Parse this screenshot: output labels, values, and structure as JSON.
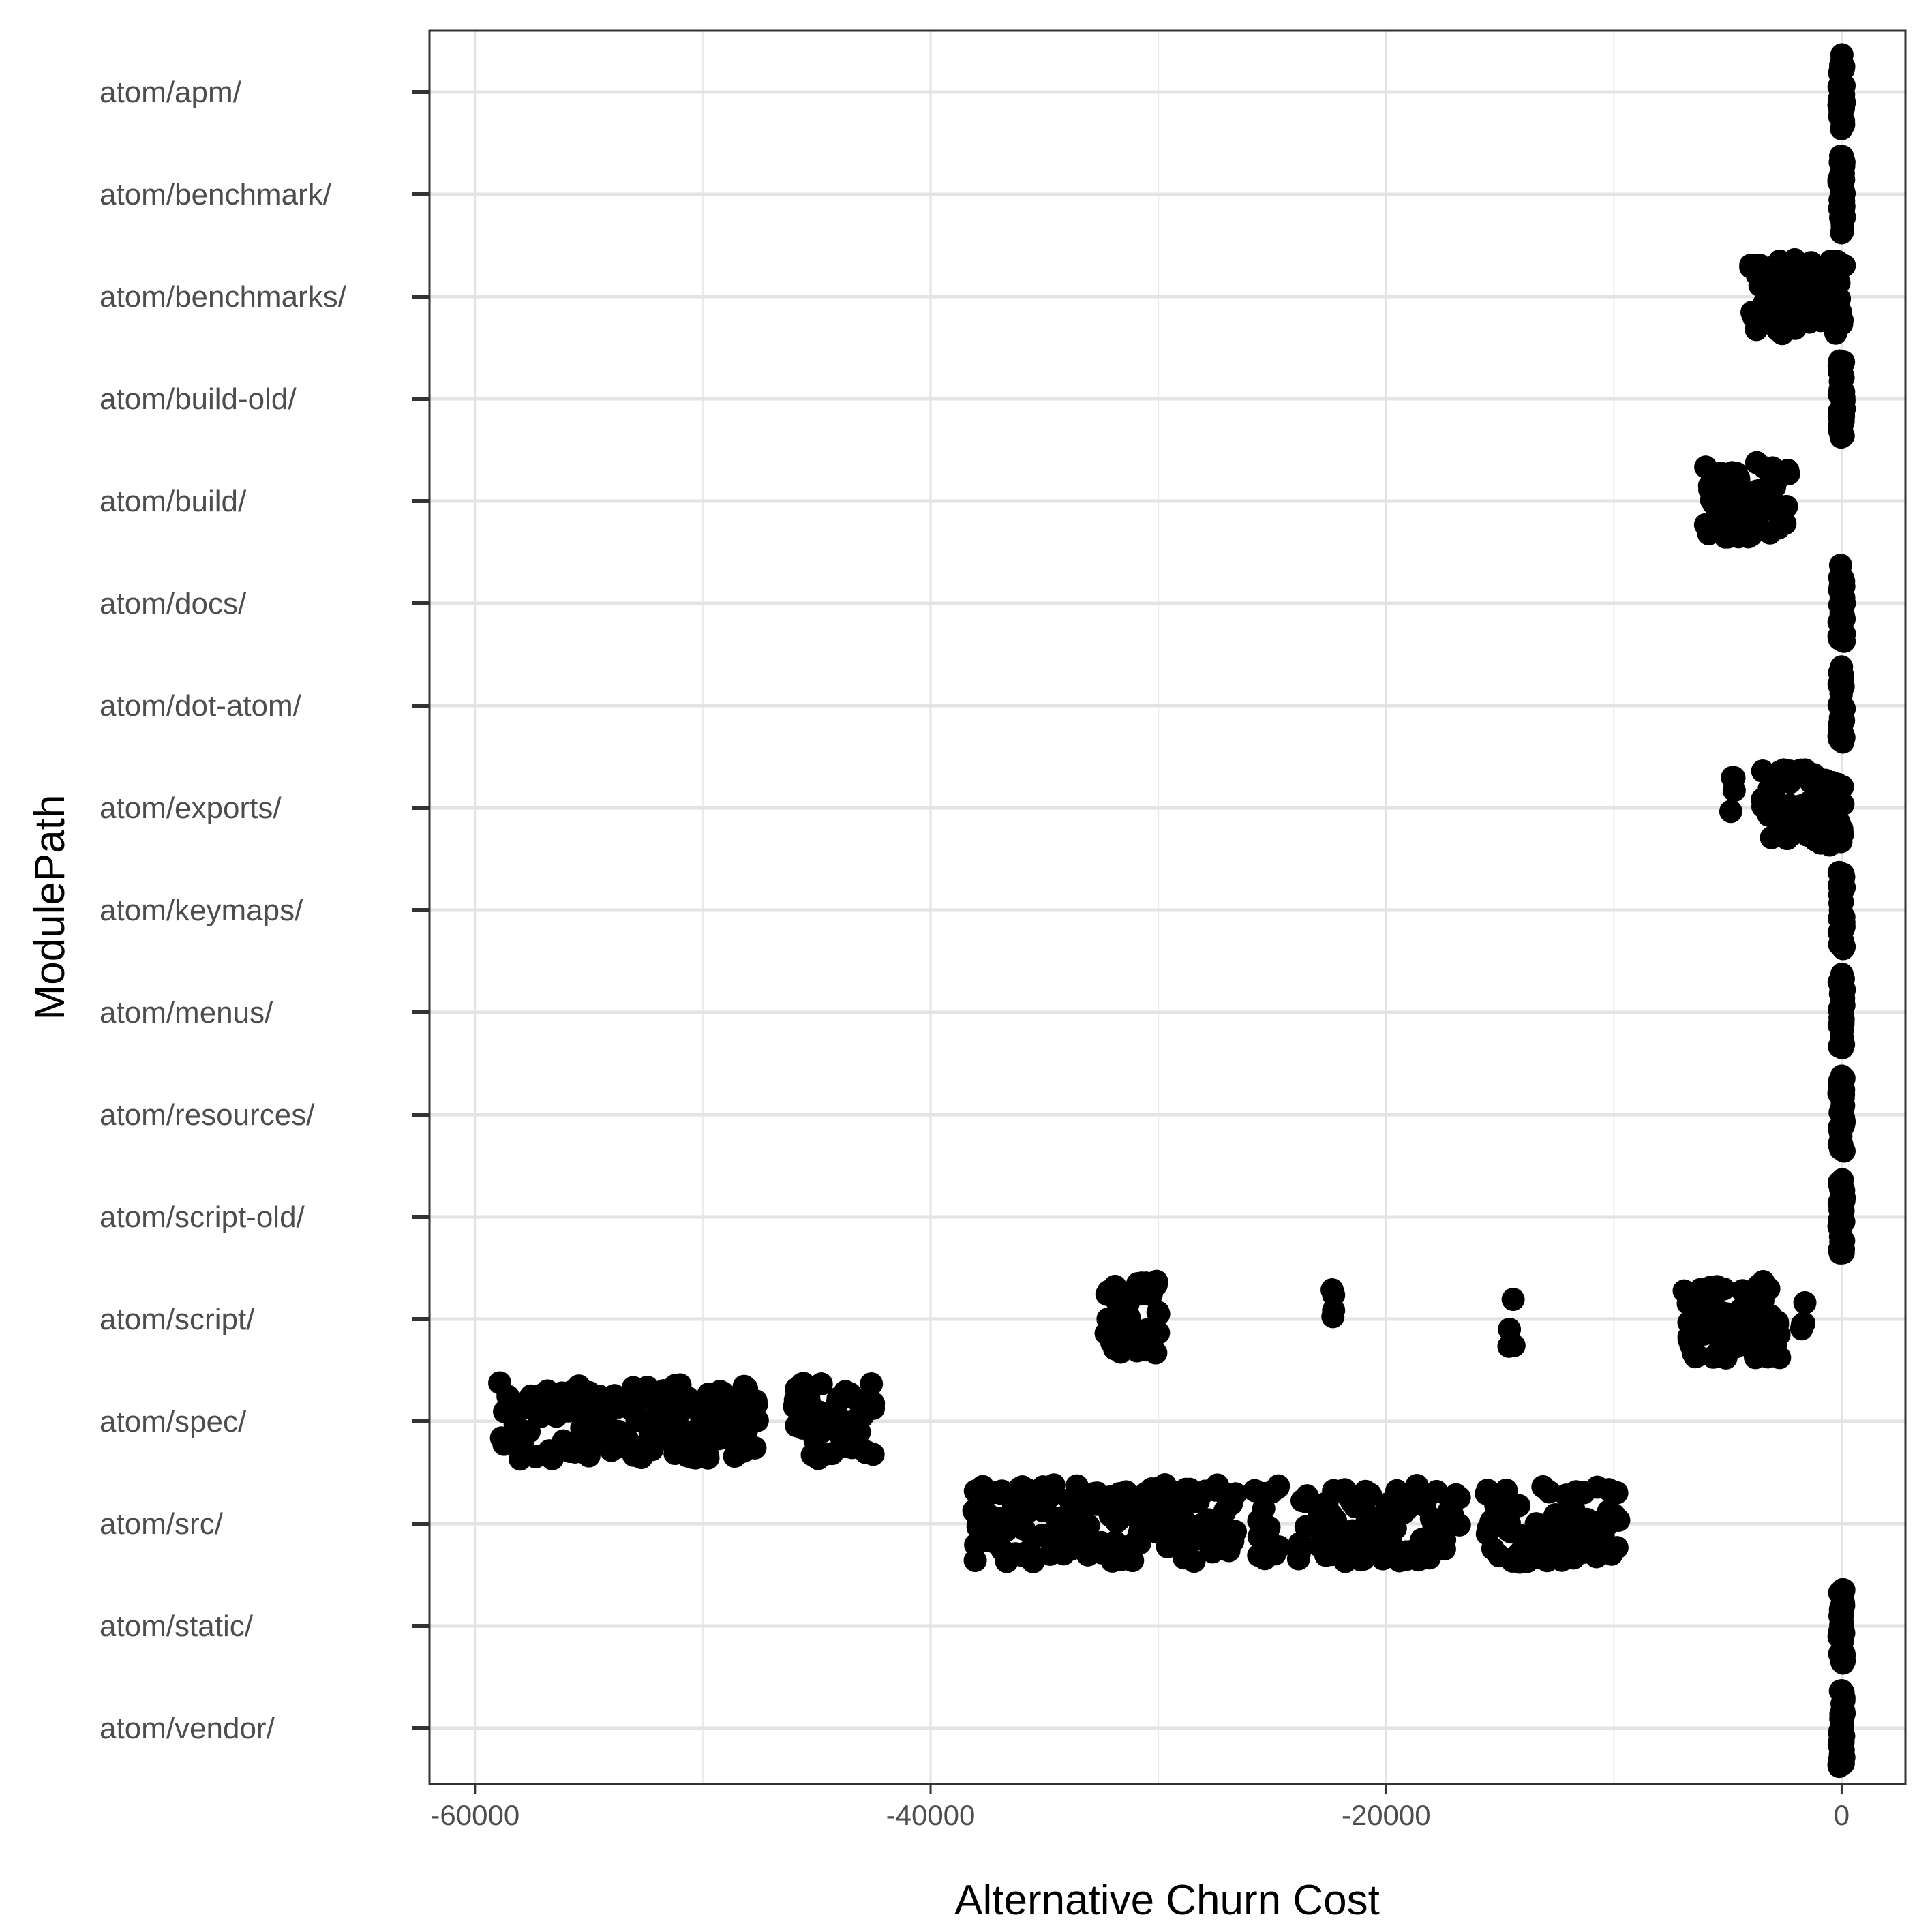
{
  "chart_data": {
    "type": "scatter",
    "xlabel": "Alternative Churn Cost",
    "ylabel": "ModulePath",
    "xlim": [
      -62000,
      2800
    ],
    "x_ticks": [
      -60000,
      -40000,
      -20000,
      0
    ],
    "x_tick_labels": [
      "-60000",
      "-40000",
      "-20000",
      "0"
    ],
    "grid": true,
    "point_color": "#000000",
    "categories": [
      "atom/apm/",
      "atom/benchmark/",
      "atom/benchmarks/",
      "atom/build-old/",
      "atom/build/",
      "atom/docs/",
      "atom/dot-atom/",
      "atom/exports/",
      "atom/keymaps/",
      "atom/menus/",
      "atom/resources/",
      "atom/script-old/",
      "atom/script/",
      "atom/spec/",
      "atom/src/",
      "atom/static/",
      "atom/vendor/"
    ],
    "series": [
      {
        "category": "atom/apm/",
        "x": [
          0,
          0,
          0,
          0,
          0,
          0,
          0,
          0,
          0,
          0
        ]
      },
      {
        "category": "atom/benchmark/",
        "x": [
          0,
          0,
          0,
          0,
          0,
          0,
          0,
          0,
          0,
          0
        ]
      },
      {
        "category": "atom/benchmarks/",
        "x": [
          -3900,
          -3700,
          -3500,
          -3300,
          -3100,
          -2900,
          -2700,
          -2500,
          -2300,
          -2100,
          -1900,
          -1700,
          -1500,
          -1300,
          -1100,
          -900,
          -600,
          -300,
          -100,
          0
        ]
      },
      {
        "category": "atom/build-old/",
        "x": [
          0,
          0,
          0,
          0,
          0,
          0,
          0,
          0,
          0,
          0
        ]
      },
      {
        "category": "atom/build/",
        "x": [
          -5900,
          -5700,
          -5500,
          -5300,
          -5100,
          -4900,
          -4700,
          -4500,
          -4300,
          -4100,
          -3900,
          -3700,
          -3500,
          -3300,
          -3100,
          -2900,
          -2700,
          -2400
        ]
      },
      {
        "category": "atom/docs/",
        "x": [
          0,
          0,
          0,
          0,
          0,
          0,
          0,
          0,
          0,
          0
        ]
      },
      {
        "category": "atom/dot-atom/",
        "x": [
          0,
          0,
          0,
          0,
          0,
          0,
          0,
          0,
          0,
          0
        ]
      },
      {
        "category": "atom/exports/",
        "x": [
          -4800,
          -3400,
          -3200,
          -3000,
          -2800,
          -2500,
          -2300,
          -2100,
          -1900,
          -1700,
          -1500,
          -1300,
          -1100,
          -900,
          -700,
          -500,
          -300,
          -100,
          0
        ]
      },
      {
        "category": "atom/keymaps/",
        "x": [
          0,
          0,
          0,
          0,
          0,
          0,
          0,
          0,
          0,
          0
        ]
      },
      {
        "category": "atom/menus/",
        "x": [
          0,
          0,
          0,
          0,
          0,
          0,
          0,
          0,
          0,
          0
        ]
      },
      {
        "category": "atom/resources/",
        "x": [
          0,
          0,
          0,
          0,
          0,
          0,
          0,
          0,
          0,
          0
        ]
      },
      {
        "category": "atom/script-old/",
        "x": [
          0,
          0,
          0,
          0,
          0,
          0,
          0,
          0,
          0,
          0
        ]
      },
      {
        "category": "atom/script/",
        "x": [
          -32200,
          -32000,
          -31800,
          -31600,
          -31400,
          -31200,
          -31000,
          -30800,
          -30600,
          -30400,
          -30200,
          -30000,
          -22300,
          -14500,
          -6800,
          -6600,
          -6400,
          -6200,
          -6000,
          -5800,
          -5600,
          -5400,
          -5200,
          -5000,
          -4800,
          -4600,
          -4400,
          -4200,
          -4000,
          -3800,
          -3600,
          -3400,
          -3200,
          -3000,
          -2800,
          -1700
        ]
      },
      {
        "category": "atom/spec/",
        "x": [
          -58800,
          -58500,
          -58200,
          -57900,
          -57600,
          -57300,
          -57000,
          -56700,
          -56400,
          -56100,
          -55800,
          -55500,
          -55200,
          -54900,
          -54600,
          -54300,
          -54000,
          -53700,
          -53400,
          -53100,
          -52800,
          -52500,
          -52200,
          -51900,
          -51600,
          -51300,
          -51000,
          -50700,
          -50400,
          -50100,
          -49800,
          -49500,
          -49200,
          -48900,
          -48600,
          -48300,
          -48000,
          -47700,
          -45900,
          -45600,
          -45300,
          -45000,
          -44700,
          -44400,
          -44100,
          -43800,
          -43500,
          -43200,
          -42900,
          -42600
        ]
      },
      {
        "category": "atom/src/",
        "x": [
          -38100,
          -37800,
          -37500,
          -37200,
          -36900,
          -36600,
          -36300,
          -36000,
          -35700,
          -35400,
          -35100,
          -34800,
          -34500,
          -34200,
          -33900,
          -33600,
          -33300,
          -33000,
          -32700,
          -32400,
          -32100,
          -31800,
          -31500,
          -31200,
          -30900,
          -30600,
          -30300,
          -30000,
          -29700,
          -29400,
          -29100,
          -28800,
          -28500,
          -28200,
          -27900,
          -27600,
          -27300,
          -27000,
          -26700,
          -25700,
          -25400,
          -25100,
          -24800,
          -23800,
          -23500,
          -22900,
          -22600,
          -22300,
          -22000,
          -21700,
          -21400,
          -21100,
          -20800,
          -20500,
          -20200,
          -19900,
          -19600,
          -19300,
          -19000,
          -18700,
          -18400,
          -18100,
          -17800,
          -17500,
          -17200,
          -16900,
          -15600,
          -15300,
          -15000,
          -14700,
          -14400,
          -14100,
          -13800,
          -13500,
          -13200,
          -12900,
          -12600,
          -12300,
          -12000,
          -11700,
          -11400,
          -11100,
          -10800,
          -10500,
          -10200,
          -9900
        ]
      },
      {
        "category": "atom/static/",
        "x": [
          0,
          0,
          0,
          0,
          0,
          0,
          0,
          0,
          0,
          0
        ]
      },
      {
        "category": "atom/vendor/",
        "x": [
          0,
          0,
          0,
          0,
          0,
          0,
          0,
          0,
          0,
          0
        ]
      }
    ]
  }
}
